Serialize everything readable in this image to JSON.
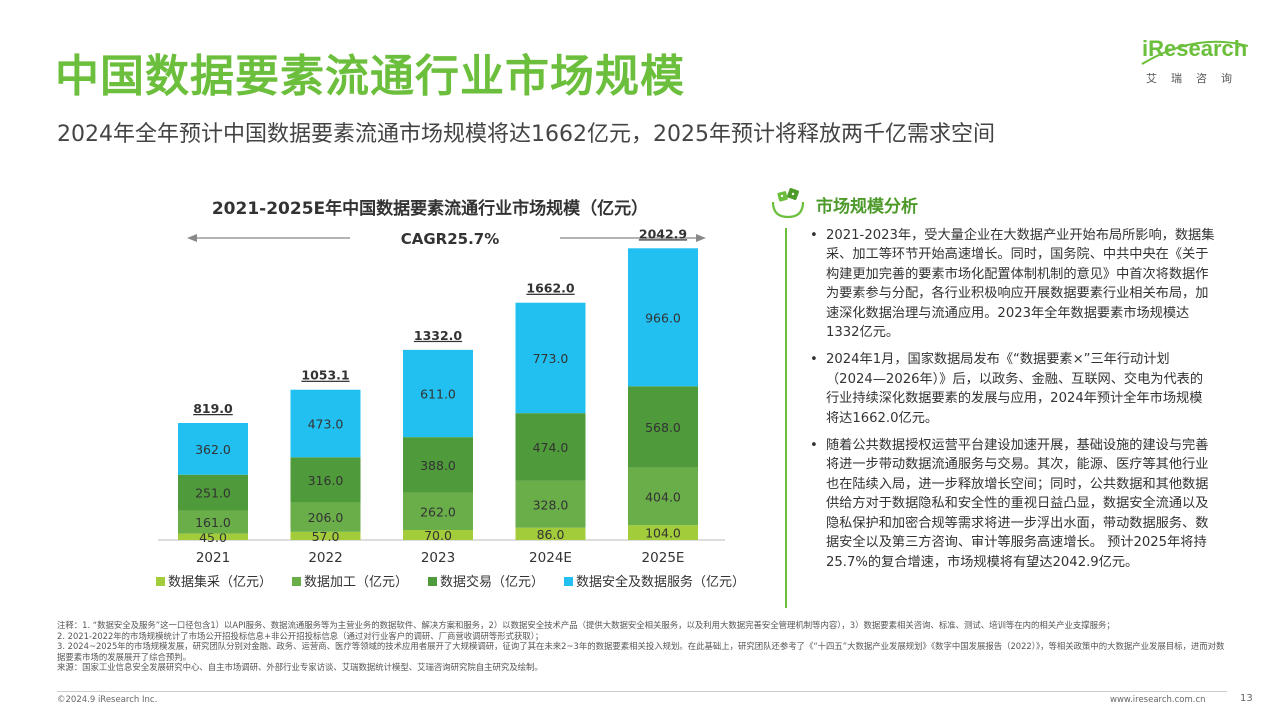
{
  "title": "中国数据要素流通行业市场规模",
  "subtitle": "2024年全年预计中国数据要素流通市场规模将达1662亿元，2025年预计将释放两千亿需求空间",
  "logo": {
    "brand": "iResearch",
    "cn": "艾瑞咨询"
  },
  "colors": {
    "accent": "#6cbf3c",
    "s1": "#a3cc3a",
    "s2": "#6aae4a",
    "s3": "#4f9a3a",
    "s4": "#21c0f0"
  },
  "chart_data": {
    "type": "bar",
    "stacked": true,
    "title": "2021-2025E年中国数据要素流通行业市场规模（亿元）",
    "cagr_label": "CAGR25.7%",
    "categories": [
      "2021",
      "2022",
      "2023",
      "2024E",
      "2025E"
    ],
    "series": [
      {
        "name": "数据集采（亿元）",
        "values": [
          "45.0",
          "57.0",
          "70.0",
          "86.0",
          "104.0"
        ]
      },
      {
        "name": "数据加工（亿元）",
        "values": [
          "161.0",
          "206.0",
          "262.0",
          "328.0",
          "404.0"
        ]
      },
      {
        "name": "数据交易（亿元）",
        "values": [
          "251.0",
          "316.0",
          "388.0",
          "474.0",
          "568.0"
        ]
      },
      {
        "name": "数据安全及数据服务（亿元）",
        "values": [
          "362.0",
          "473.0",
          "611.0",
          "773.0",
          "966.0"
        ]
      }
    ],
    "totals": [
      "819.0",
      "1053.1",
      "1332.0",
      "1662.0",
      "2042.9"
    ],
    "ylim": [
      0,
      2100
    ],
    "legend": "bottom"
  },
  "sidebar": {
    "heading": "市场规模分析",
    "bullets": [
      "2021-2023年，受大量企业在大数据产业开始布局所影响，数据集采、加工等环节开始高速增长。同时，国务院、中共中央在《关于构建更加完善的要素市场化配置体制机制的意见》中首次将数据作为要素参与分配，各行业积极响应开展数据要素行业相关布局，加速深化数据治理与流通应用。2023年全年数据要素市场规模达1332亿元。",
      "2024年1月，国家数据局发布《“数据要素×”三年行动计划（2024—2026年）》后，以政务、金融、互联网、交电为代表的行业持续深化数据要素的发展与应用，2024年预计全年市场规模将达1662.0亿元。",
      "随着公共数据授权运营平台建设加速开展，基础设施的建设与完善将进一步带动数据流通服务与交易。其次，能源、医疗等其他行业也在陆续入局，进一步释放增长空间；同时，公共数据和其他数据供给方对于数据隐私和安全性的重视日益凸显，数据安全流通以及隐私保护和加密合规等需求将进一步浮出水面，带动数据服务、数据安全以及第三方咨询、审计等服务高速增长。 预计2025年将持25.7%的复合增速，市场规模将有望达2042.9亿元。"
    ]
  },
  "notes": [
    "注释：1. “数据安全及服务”这一口径包含1）以API服务、数据流通服务等为主营业务的数据软件、解决方案和服务，2）以数据安全技术产品（提供大数据安全相关服务，以及利用大数据完善安全管理机制等内容），3）数据要素相关咨询、标准、测试、培训等在内的相关产业支撑服务；",
    "2. 2021-2022年的市场规模统计了市场公开招投标信息+非公开招投标信息（通过对行业客户的调研、厂商营收调研等形式获取）；",
    "3. 2024~2025年的市场规模发展，研究团队分别对金融、政务、运营商、医疗等领域的技术应用者展开了大规模调研，征询了其在未来2~3年的数据要素相关投入规划。在此基础上，研究团队还参考了《“十四五”大数据产业发展规划》《数字中国发展报告（2022）》，等相关政策中的大数据产业发展目标，进而对数据要素市场的发展展开了综合预判。",
    "来源：国家工业信息安全发展研究中心、自主市场调研、外部行业专家访谈、艾瑞数据统计模型、艾瑞咨询研究院自主研究及绘制。"
  ],
  "footer": {
    "copyright": "©2024.9 iResearch Inc.",
    "url": "www.iresearch.com.cn",
    "page": "13"
  }
}
